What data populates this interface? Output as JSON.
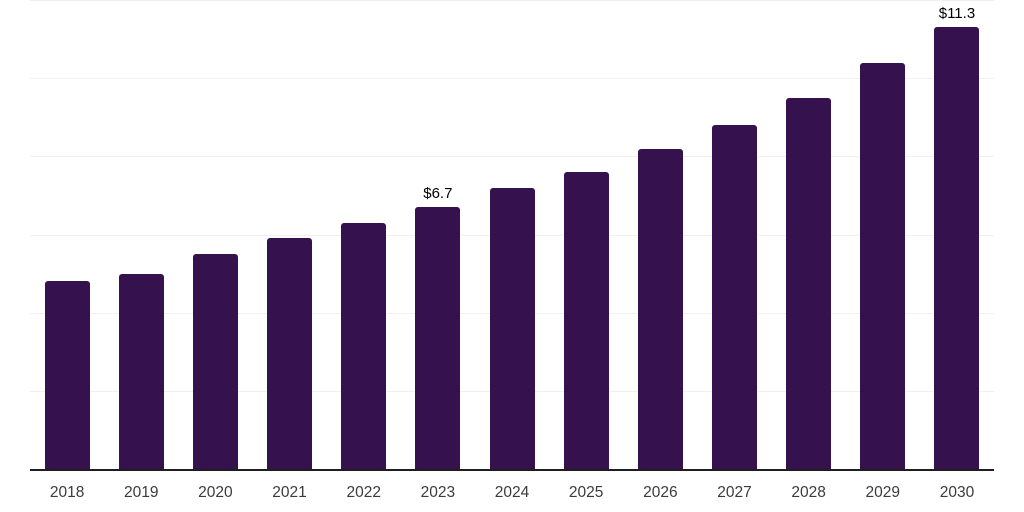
{
  "chart_data": {
    "type": "bar",
    "title": "",
    "xlabel": "",
    "ylabel": "",
    "categories": [
      "2018",
      "2019",
      "2020",
      "2021",
      "2022",
      "2023",
      "2024",
      "2025",
      "2026",
      "2027",
      "2028",
      "2029",
      "2030"
    ],
    "values": [
      4.8,
      5.0,
      5.5,
      5.9,
      6.3,
      6.7,
      7.2,
      7.6,
      8.2,
      8.8,
      9.5,
      10.4,
      11.3
    ],
    "data_labels": {
      "2023": "$6.7",
      "2030": "$11.3"
    },
    "ylim": [
      0,
      12
    ],
    "gridline_step": 2,
    "grid": "horizontal",
    "legend": "none",
    "colors": {
      "bar": "#35124E",
      "gridline": "#f0f0f1",
      "axis_line": "#1f1f1f",
      "tick_label": "#3b3b3b",
      "value_label": "#000000",
      "background": "#ffffff"
    }
  }
}
